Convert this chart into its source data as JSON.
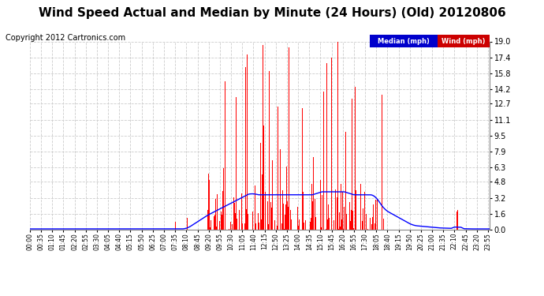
{
  "title": "Wind Speed Actual and Median by Minute (24 Hours) (Old) 20120806",
  "copyright": "Copyright 2012 Cartronics.com",
  "legend_median_label": "Median (mph)",
  "legend_wind_label": "Wind (mph)",
  "legend_median_bg": "#0000cc",
  "legend_wind_bg": "#cc0000",
  "yticks": [
    0.0,
    1.6,
    3.2,
    4.8,
    6.3,
    7.9,
    9.5,
    11.1,
    12.7,
    14.2,
    15.8,
    17.4,
    19.0
  ],
  "ymax": 19.0,
  "ymin": 0.0,
  "bg_color": "#ffffff",
  "plot_bg_color": "#ffffff",
  "grid_color": "#cccccc",
  "bar_color": "#ff0000",
  "line_color": "#0000ff",
  "title_fontsize": 11,
  "copyright_fontsize": 7,
  "n_minutes": 1440,
  "xtick_step": 35
}
